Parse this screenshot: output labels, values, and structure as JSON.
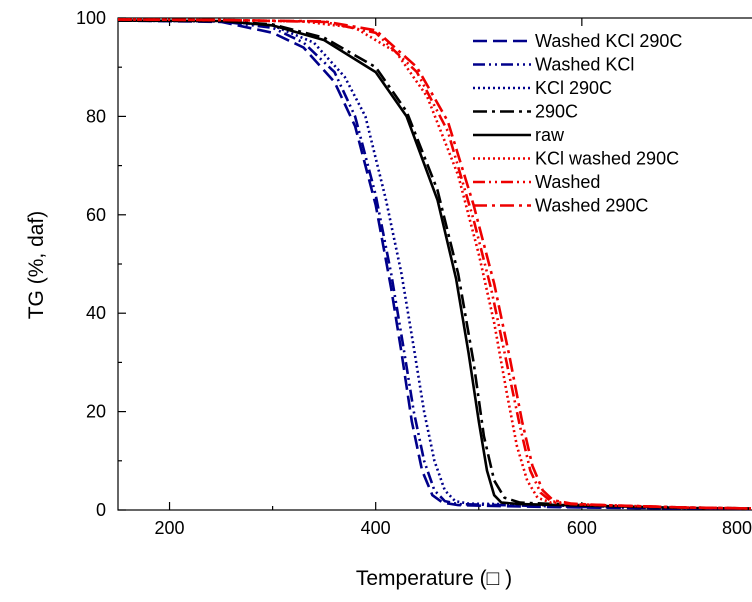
{
  "chart_data": {
    "type": "line",
    "title": "",
    "xlabel": "Temperature (□ )",
    "ylabel": "TG (%, daf)",
    "xlim": [
      150,
      800
    ],
    "ylim": [
      0,
      100
    ],
    "x_ticks": [
      200,
      400,
      600,
      800
    ],
    "y_ticks": [
      0,
      20,
      40,
      60,
      80,
      100
    ],
    "grid": false,
    "legend_position": "top-right",
    "series": [
      {
        "name": "Washed KCl 290C",
        "color": "#00008b",
        "dash": "dashed",
        "points": [
          [
            150,
            99.5
          ],
          [
            250,
            99.2
          ],
          [
            300,
            97
          ],
          [
            330,
            94
          ],
          [
            360,
            87
          ],
          [
            380,
            78
          ],
          [
            400,
            62
          ],
          [
            415,
            45
          ],
          [
            425,
            32
          ],
          [
            435,
            18
          ],
          [
            445,
            8
          ],
          [
            455,
            3
          ],
          [
            465,
            1.5
          ],
          [
            480,
            1
          ],
          [
            520,
            0.8
          ],
          [
            600,
            0.5
          ],
          [
            700,
            0.3
          ],
          [
            800,
            0.2
          ]
        ]
      },
      {
        "name": "Washed KCl",
        "color": "#00008b",
        "dash": "dash-dot-dot",
        "points": [
          [
            150,
            99.5
          ],
          [
            250,
            99.3
          ],
          [
            300,
            98
          ],
          [
            330,
            95
          ],
          [
            360,
            89
          ],
          [
            380,
            80
          ],
          [
            400,
            64
          ],
          [
            415,
            48
          ],
          [
            427,
            33
          ],
          [
            437,
            20
          ],
          [
            447,
            10
          ],
          [
            457,
            4
          ],
          [
            467,
            1.8
          ],
          [
            480,
            1.2
          ],
          [
            520,
            1
          ],
          [
            600,
            0.6
          ],
          [
            700,
            0.3
          ],
          [
            800,
            0.2
          ]
        ]
      },
      {
        "name": "KCl 290C",
        "color": "#00008b",
        "dash": "dotted",
        "points": [
          [
            150,
            99.5
          ],
          [
            250,
            99.3
          ],
          [
            300,
            98.5
          ],
          [
            340,
            95
          ],
          [
            370,
            88
          ],
          [
            390,
            80
          ],
          [
            410,
            63
          ],
          [
            425,
            48
          ],
          [
            437,
            33
          ],
          [
            447,
            20
          ],
          [
            457,
            10
          ],
          [
            467,
            4
          ],
          [
            477,
            1.8
          ],
          [
            490,
            1.3
          ],
          [
            520,
            1.2
          ],
          [
            600,
            0.8
          ],
          [
            700,
            0.4
          ],
          [
            800,
            0.2
          ]
        ]
      },
      {
        "name": "290C",
        "color": "#000000",
        "dash": "dash-dot",
        "points": [
          [
            150,
            99.5
          ],
          [
            250,
            99.4
          ],
          [
            300,
            98.7
          ],
          [
            350,
            96
          ],
          [
            400,
            90
          ],
          [
            430,
            81
          ],
          [
            460,
            65
          ],
          [
            480,
            48
          ],
          [
            495,
            30
          ],
          [
            505,
            15
          ],
          [
            515,
            6
          ],
          [
            525,
            2.5
          ],
          [
            540,
            1.5
          ],
          [
            600,
            1
          ],
          [
            700,
            0.5
          ],
          [
            800,
            0.2
          ]
        ]
      },
      {
        "name": "raw",
        "color": "#000000",
        "dash": "solid",
        "points": [
          [
            150,
            99.5
          ],
          [
            250,
            99.4
          ],
          [
            300,
            98.5
          ],
          [
            350,
            95.5
          ],
          [
            400,
            89
          ],
          [
            430,
            80
          ],
          [
            460,
            63
          ],
          [
            478,
            47
          ],
          [
            490,
            32
          ],
          [
            500,
            18
          ],
          [
            508,
            8
          ],
          [
            515,
            3
          ],
          [
            522,
            1.5
          ],
          [
            540,
            1.2
          ],
          [
            600,
            0.9
          ],
          [
            700,
            0.4
          ],
          [
            800,
            0.2
          ]
        ]
      },
      {
        "name": "KCl washed 290C",
        "color": "#ee0000",
        "dash": "dotted",
        "points": [
          [
            150,
            99.7
          ],
          [
            250,
            99.6
          ],
          [
            330,
            99.3
          ],
          [
            380,
            98
          ],
          [
            420,
            93
          ],
          [
            450,
            84
          ],
          [
            480,
            68
          ],
          [
            500,
            52
          ],
          [
            515,
            38
          ],
          [
            527,
            24
          ],
          [
            537,
            13
          ],
          [
            547,
            6
          ],
          [
            557,
            2.5
          ],
          [
            570,
            1.5
          ],
          [
            600,
            1.1
          ],
          [
            700,
            0.5
          ],
          [
            800,
            0.2
          ]
        ]
      },
      {
        "name": "Washed",
        "color": "#ee0000",
        "dash": "dash-dot-dot",
        "points": [
          [
            150,
            99.7
          ],
          [
            250,
            99.6
          ],
          [
            350,
            99.2
          ],
          [
            400,
            97
          ],
          [
            440,
            89
          ],
          [
            470,
            77
          ],
          [
            495,
            59
          ],
          [
            512,
            45
          ],
          [
            527,
            30
          ],
          [
            540,
            17
          ],
          [
            550,
            8
          ],
          [
            560,
            3.5
          ],
          [
            570,
            1.8
          ],
          [
            590,
            1.2
          ],
          [
            620,
            1
          ],
          [
            700,
            0.5
          ],
          [
            800,
            0.2
          ]
        ]
      },
      {
        "name": "Washed 290C",
        "color": "#ee0000",
        "dash": "dash-dot",
        "points": [
          [
            150,
            99.7
          ],
          [
            250,
            99.6
          ],
          [
            350,
            99.3
          ],
          [
            400,
            97.5
          ],
          [
            440,
            90
          ],
          [
            470,
            79
          ],
          [
            495,
            62
          ],
          [
            515,
            46
          ],
          [
            530,
            31
          ],
          [
            542,
            18
          ],
          [
            552,
            9
          ],
          [
            562,
            4
          ],
          [
            572,
            2
          ],
          [
            590,
            1.3
          ],
          [
            620,
            1
          ],
          [
            700,
            0.5
          ],
          [
            800,
            0.2
          ]
        ]
      }
    ]
  }
}
